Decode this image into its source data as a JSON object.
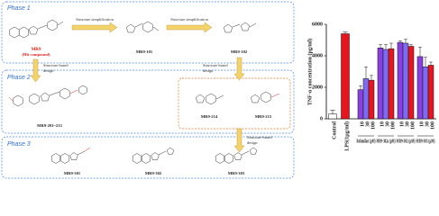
{
  "diagram": {
    "phases": [
      "Phase 1",
      "Phase 2",
      "Phase 3"
    ],
    "hit": {
      "name": "MR9",
      "note": "(Hit compound)"
    },
    "arrows": [
      [
        "Structure simplification"
      ],
      [
        "Structure simplification"
      ],
      [
        "Structure-based",
        "design"
      ],
      [
        "Structure-based",
        "design"
      ],
      [
        "Structure-based",
        "design"
      ]
    ],
    "compounds": [
      "MR9-101",
      "MR9-102",
      "MR9-201~213",
      "MR9-214",
      "MR9-215",
      "MR9-301",
      "MR9-302",
      "MR9-303"
    ]
  },
  "chart_data": {
    "type": "bar",
    "y_label": "TNF-α concentration (pg/ml)",
    "ylim": [
      0,
      6000
    ],
    "yticks": [
      0,
      2000,
      4000,
      6000
    ],
    "categories": [
      "Control",
      "LPS(1μg/ml)"
    ],
    "values": [
      300,
      5400
    ],
    "errors": [
      250,
      100
    ],
    "colors": [
      "#ffffff",
      "#e8141e"
    ],
    "group_colors": [
      "#8b3fe0",
      "#7b6cf5",
      "#e8141e"
    ],
    "groups": [
      {
        "label": "Rolumilast (μM)",
        "categories": [
          "10",
          "30",
          "100"
        ],
        "values": [
          1850,
          2550,
          2450
        ],
        "errors": [
          250,
          750,
          300
        ]
      },
      {
        "label": "MR9-302a (μM)",
        "categories": [
          "10",
          "30",
          "100"
        ],
        "values": [
          4500,
          4400,
          4450
        ],
        "errors": [
          200,
          300,
          350
        ]
      },
      {
        "label": "MR9-302 (μM)",
        "categories": [
          "10",
          "30",
          "100"
        ],
        "values": [
          4850,
          4800,
          4600
        ],
        "errors": [
          100,
          250,
          100
        ]
      },
      {
        "label": "MR9-303 (μM)",
        "categories": [
          "10",
          "30",
          "100"
        ],
        "values": [
          3950,
          3300,
          3400
        ],
        "errors": [
          600,
          600,
          200
        ]
      }
    ]
  }
}
